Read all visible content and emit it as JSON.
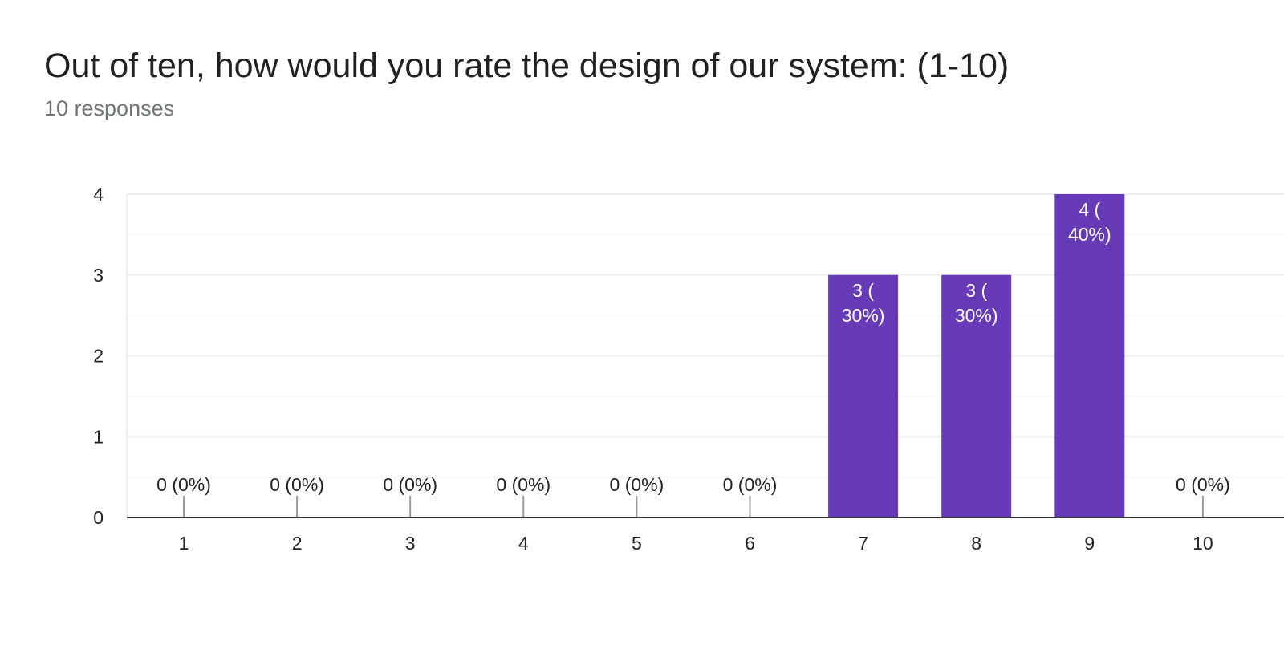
{
  "header": {
    "title": "Out of ten, how would you rate the design of our system: (1-10)",
    "subtitle": "10 responses"
  },
  "chart_data": {
    "type": "bar",
    "categories": [
      "1",
      "2",
      "3",
      "4",
      "5",
      "6",
      "7",
      "8",
      "9",
      "10"
    ],
    "values": [
      0,
      0,
      0,
      0,
      0,
      0,
      3,
      3,
      4,
      0
    ],
    "data_labels": [
      "0 (0%)",
      "0 (0%)",
      "0 (0%)",
      "0 (0%)",
      "0 (0%)",
      "0 (0%)",
      "3 (\n30%)",
      "3 (\n30%)",
      "4 (\n40%)",
      "0 (0%)"
    ],
    "title": "Out of ten, how would you rate the design of our system: (1-10)",
    "xlabel": "",
    "ylabel": "",
    "ylim": [
      0,
      4
    ],
    "yticks": [
      0,
      1,
      2,
      3,
      4
    ],
    "grid": true,
    "colors": {
      "bar": "#673ab7",
      "grid": "#eeeeee",
      "minor_grid": "#f6f6f6",
      "axis": "#333333",
      "zero_tick": "#999999",
      "label_inside": "#ffffff",
      "label_outside": "#222222"
    }
  }
}
